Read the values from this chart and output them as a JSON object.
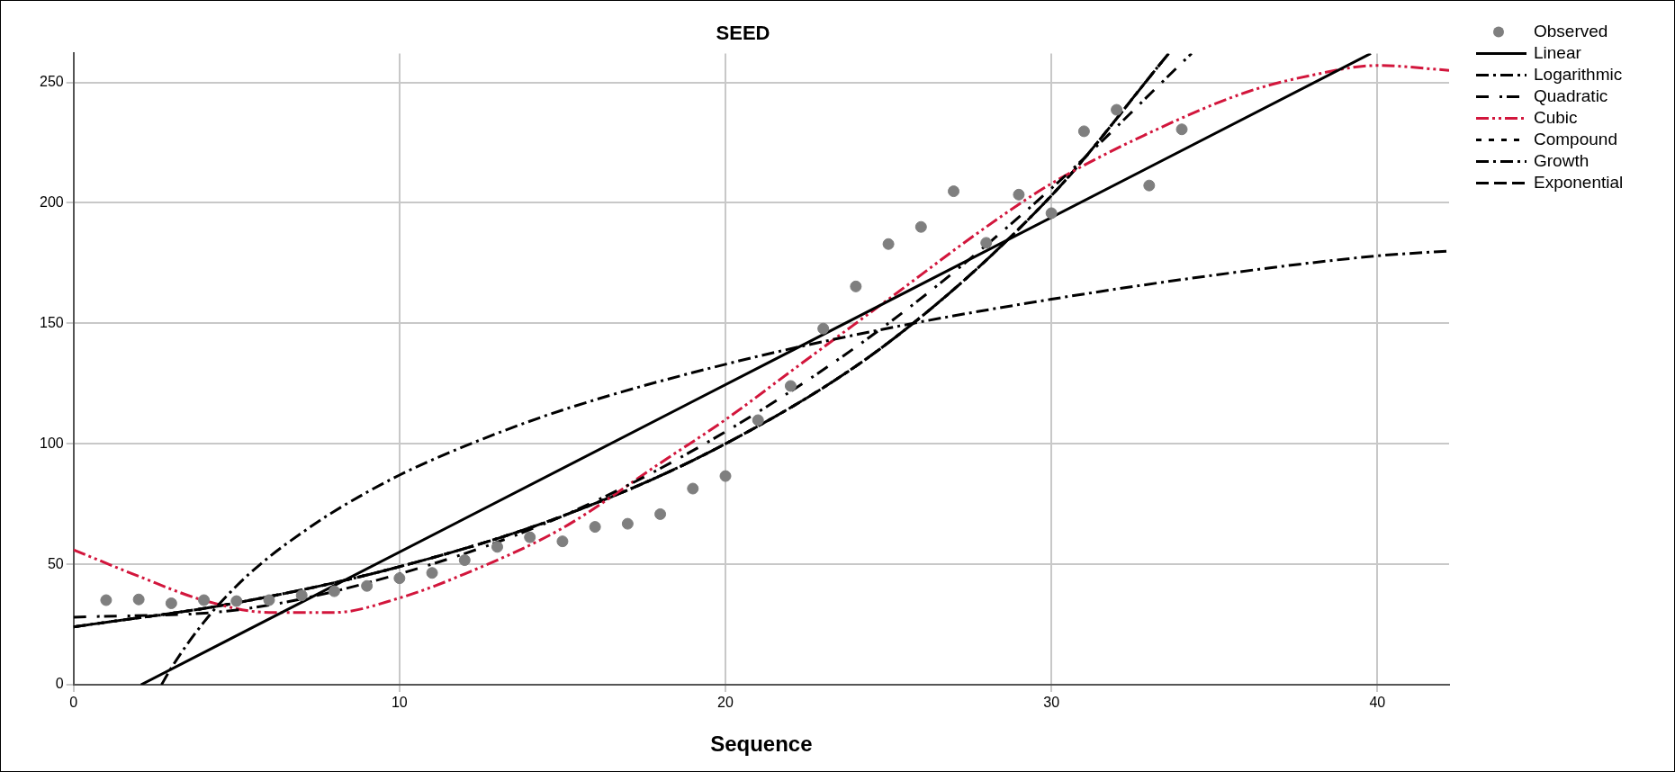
{
  "chart_data": {
    "type": "scatter",
    "title": "SEED",
    "xlabel": "Sequence",
    "xlim": [
      0,
      42.2
    ],
    "xticks": [
      0,
      10,
      20,
      30,
      40
    ],
    "ylim": [
      0,
      262
    ],
    "yticks": [
      0,
      50,
      100,
      150,
      200,
      250
    ],
    "grid": true,
    "legend": "top right",
    "marker": "none",
    "x": [
      1,
      2,
      3,
      4,
      5,
      6,
      7,
      8,
      9,
      10,
      11,
      12,
      13,
      14,
      15,
      16,
      17,
      18,
      19,
      20,
      21,
      22,
      23,
      24,
      25,
      26,
      27,
      28,
      29,
      30,
      31,
      32,
      33,
      34
    ],
    "series": [
      {
        "name": "Observed",
        "type": "scatter",
        "marker": "circle",
        "color": "#7f7f7f",
        "values": [
          35.1,
          35.4,
          33.8,
          35.1,
          34.7,
          35.1,
          37.1,
          38.8,
          41,
          44.2,
          46.4,
          51.7,
          57.2,
          61.2,
          59.5,
          65.5,
          66.8,
          70.8,
          81.4,
          86.6,
          109.8,
          124,
          147.8,
          165.3,
          182.9,
          190,
          204.8,
          183.4,
          203.4,
          195.7,
          229.7,
          238.6,
          207.2,
          230.5
        ]
      },
      {
        "name": "Linear",
        "type": "line",
        "line_style": "solid",
        "color": "#000000",
        "x": [
          2.07,
          39.8
        ],
        "values": [
          0,
          262
        ]
      },
      {
        "name": "Logarithmic",
        "type": "line",
        "line_style": "dashdot",
        "color": "#000000",
        "x": [
          2.7,
          3,
          4,
          5,
          6,
          7,
          8,
          10,
          12,
          15,
          20,
          25,
          30,
          35,
          40,
          42.2
        ],
        "values": [
          0,
          7,
          26,
          41,
          53,
          63,
          72,
          87,
          99,
          114,
          133,
          148,
          160,
          170,
          178,
          180
        ]
      },
      {
        "name": "Quadratic",
        "type": "line",
        "line_style": "dashdot-wide",
        "color": "#000000",
        "x": [
          0,
          5,
          10,
          15,
          20,
          25,
          30,
          34.3
        ],
        "values": [
          28,
          31,
          46,
          70,
          105,
          150,
          206,
          262
        ]
      },
      {
        "name": "Cubic",
        "type": "line",
        "line_style": "dashdotdot",
        "color": "#d2163c",
        "x": [
          0,
          2,
          4,
          6,
          8,
          10,
          12,
          15,
          18,
          20,
          22,
          25,
          28,
          30,
          33,
          36,
          38,
          40,
          42.2
        ],
        "values": [
          56,
          45,
          35,
          30,
          30,
          36,
          46,
          65,
          92,
          110,
          130,
          160,
          190,
          208,
          229,
          246,
          253,
          257,
          255
        ]
      },
      {
        "name": "Compound",
        "type": "line",
        "line_style": "dashed-short",
        "color": "#000000",
        "x": [
          0,
          5,
          10,
          15,
          20,
          25,
          30,
          33.6
        ],
        "values": [
          24,
          34,
          49,
          70,
          100,
          142,
          203,
          262
        ]
      },
      {
        "name": "Growth",
        "type": "line",
        "line_style": "dashdot",
        "color": "#000000",
        "x": [
          0,
          5,
          10,
          15,
          20,
          25,
          30,
          33.6
        ],
        "values": [
          24,
          34,
          49,
          70,
          100,
          142,
          203,
          262
        ]
      },
      {
        "name": "Exponential",
        "type": "line",
        "line_style": "dashed",
        "color": "#000000",
        "x": [
          0,
          5,
          10,
          15,
          20,
          25,
          30,
          33.6
        ],
        "values": [
          24,
          34,
          49,
          70,
          100,
          142,
          203,
          262
        ]
      }
    ]
  }
}
